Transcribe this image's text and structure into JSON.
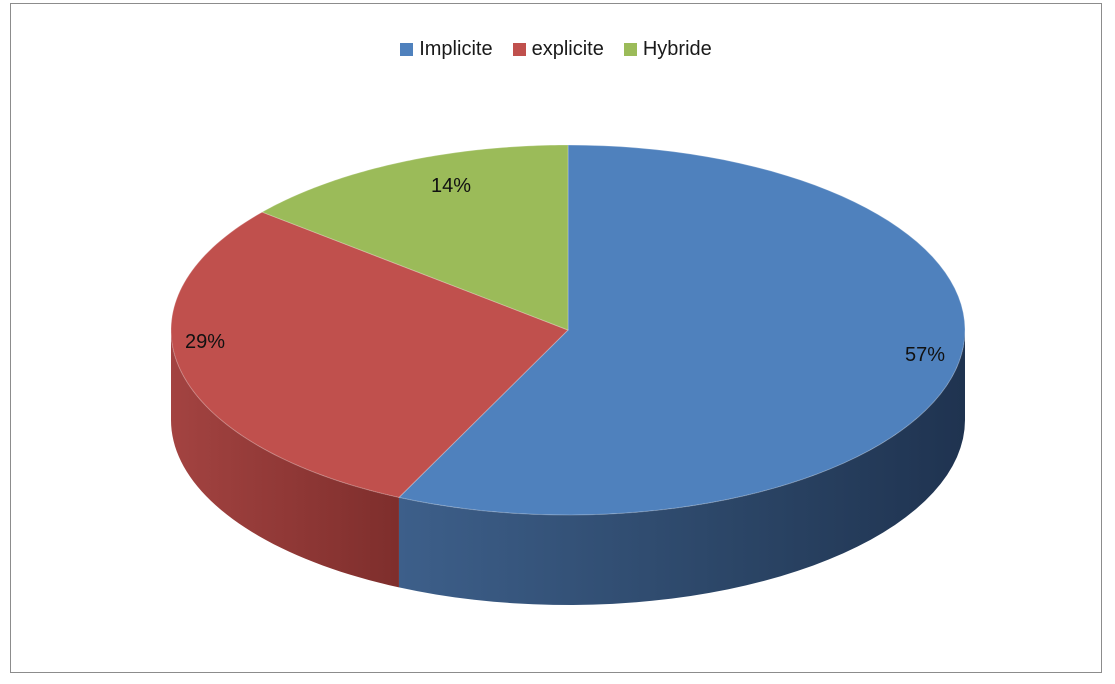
{
  "chart_data": {
    "type": "pie",
    "title": "",
    "legend_position": "top",
    "categories": [
      "Implicite",
      "explicite",
      "Hybride"
    ],
    "values": [
      57,
      29,
      14
    ],
    "data_labels": [
      "57%",
      "29%",
      "14%"
    ],
    "colors": [
      "#4f81bd",
      "#c0504d",
      "#9bbb59"
    ],
    "side_colors": [
      "#2e4a6e",
      "#8e3432",
      "#6f8a3e"
    ]
  }
}
